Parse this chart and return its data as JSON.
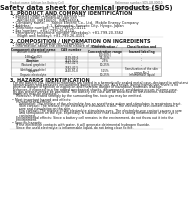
{
  "header_left": "Product name: Lithium Ion Battery Cell",
  "header_right": "Reference number: SDS-LIB-00010\nEstablished / Revision: Dec.7.2010",
  "title": "Safety data sheet for chemical products (SDS)",
  "section1_title": "1. PRODUCT AND COMPANY IDENTIFICATION",
  "section1_lines": [
    "  • Product name: Lithium Ion Battery Cell",
    "  • Product code: Cylindrical-type cell",
    "      INR18650J, INR18650L, INR18650A",
    "  • Company name:      Sanyo Electric Co., Ltd.  Mobile Energy Company",
    "  • Address:              2-1, Kannondai, Sumoto City, Hyogo, Japan",
    "  • Telephone number:  +81-(799)-20-4111",
    "  • Fax number:  +81-(799)-26-4120",
    "  • Emergency telephone number (Weekday): +81-799-20-3562",
    "      (Night and holiday): +81-799-26-4101"
  ],
  "section2_title": "2. COMPOSITION / INFORMATION ON INGREDIENTS",
  "section2_intro": "  • Substance or preparation: Preparation",
  "section2_sub": "  • Information about the chemical nature of product:",
  "table_headers": [
    "Component chemical name",
    "CAS number",
    "Concentration /\nConcentration range",
    "Classification and\nhazard labeling"
  ],
  "table_rows": [
    [
      "Lithium nickel laminate\n(LiNixCoyO2)",
      "-",
      "[30-60%]",
      "-"
    ],
    [
      "Iron",
      "7439-89-6",
      "15-25%",
      "-"
    ],
    [
      "Aluminum",
      "7429-90-5",
      "2-5%",
      "-"
    ],
    [
      "Graphite\n(Natural graphite)\n(Artificial graphite)",
      "7782-42-5\n7782-42-5",
      "10-25%",
      "-"
    ],
    [
      "Copper",
      "7440-50-8",
      "5-15%",
      "Sensitization of the skin\ngroup No.2"
    ],
    [
      "Organic electrolyte",
      "-",
      "10-25%",
      "Inflammable liquid"
    ]
  ],
  "section3_title": "3. HAZARDS IDENTIFICATION",
  "section3_para1": [
    "   For the battery cell, chemical materials are stored in a hermetically sealed metal case, designed to withstand",
    "   temperatures and pressures encountered during normal use. As a result, during normal use, there is no",
    "   physical danger of ignition or explosion and therefore danger of hazardous materials leakage.",
    "   However, if exposed to a fire added mechanical shocks, decomposed, smoldering occurs in some case.",
    "   By gas release ventee be operated. The battery cell case will be breached all fire-extreme, hazardous",
    "   materials may be released.",
    "      Moreover, if heated strongly by the surrounding fire, toxic gas may be emitted."
  ],
  "section3_bullet1": "  • Most important hazard and effects:",
  "section3_human": "      Human health effects:",
  "section3_human_lines": [
    "         Inhalation: The release of the electrolyte has an anesthesia action and stimulates in respiratory tract.",
    "         Skin contact: The release of the electrolyte stimulates a skin. The electrolyte skin contact causes a",
    "         sore and stimulation on the skin.",
    "         Eye contact: The release of the electrolyte stimulates eyes. The electrolyte eye contact causes a sore",
    "         and stimulation on the eye. Especially, a substance that causes a strong inflammation of the eye is",
    "         contained."
  ],
  "section3_env": "      Environmental effects: Since a battery cell remains in the environment, do not throw out it into the",
  "section3_env2": "      environment.",
  "section3_bullet2": "  • Specific hazards:",
  "section3_specific": [
    "      If the electrolyte contacts with water, it will generate detrimental hydrogen fluoride.",
    "      Since the used electrolyte is inflammable liquid, do not bring close to fire."
  ],
  "bg_color": "#ffffff",
  "text_color": "#1a1a1a",
  "header_color": "#666666",
  "table_header_bg": "#d8d8d8",
  "table_line_color": "#aaaaaa"
}
